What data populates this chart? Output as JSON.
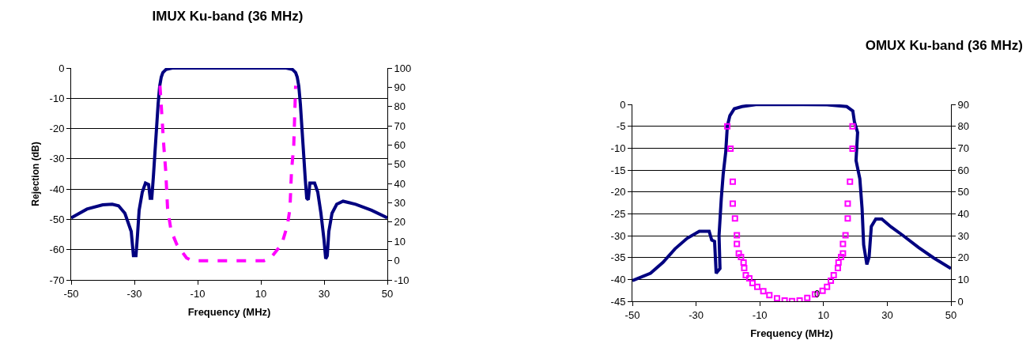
{
  "chart_data": [
    {
      "type": "line",
      "title": "IMUX Ku-band (36 MHz)",
      "xlabel": "Frequency (MHz)",
      "ylabel": "Rejection (dB)",
      "xlim": [
        -50,
        50
      ],
      "xticks": [
        -50,
        -30,
        -10,
        10,
        30,
        50
      ],
      "ylim": [
        -70,
        0
      ],
      "yticks": [
        -70,
        -60,
        -50,
        -40,
        -30,
        -20,
        -10,
        0
      ],
      "y2lim": [
        -10,
        100
      ],
      "y2ticks": [
        -10,
        0,
        10,
        20,
        30,
        40,
        50,
        60,
        70,
        80,
        90,
        100
      ],
      "grid": "y",
      "series": [
        {
          "color": "#000080",
          "marker": "none",
          "line_style": "solid",
          "x": [
            -50,
            -45,
            -40,
            -37,
            -35,
            -33,
            -31,
            -30.3,
            -29.5,
            -29,
            -28.5,
            -27.5,
            -26.5,
            -25.5,
            -25,
            -24.5,
            -24,
            -23.5,
            -23,
            -22.5,
            -22,
            -21.5,
            -21,
            -20,
            -18,
            0,
            18,
            20,
            21,
            21.5,
            22,
            22.5,
            23,
            23.5,
            24,
            24.5,
            25,
            25.5,
            27,
            28,
            29,
            30,
            30.5,
            31,
            31.5,
            32.5,
            34,
            36,
            40,
            45,
            50
          ],
          "values": [
            -49.5,
            -46.6,
            -45.2,
            -45,
            -45.5,
            -48,
            -54,
            -62,
            -62,
            -55,
            -47,
            -41,
            -38,
            -38.5,
            -43,
            -43,
            -36,
            -28,
            -20,
            -12,
            -6,
            -3,
            -1.5,
            -0.5,
            0,
            0,
            0,
            -0.5,
            -1.5,
            -3,
            -6,
            -12,
            -20,
            -28,
            -36,
            -43,
            -43.5,
            -38,
            -38,
            -41,
            -48,
            -57,
            -63,
            -62,
            -54,
            -48,
            -45,
            -44,
            -45,
            -47,
            -49.5
          ]
        },
        {
          "color": "#ff00ff",
          "axis": "y2",
          "marker": "none",
          "line_style": "dashed",
          "x": [
            -21.9,
            -20.7,
            -20.1,
            -19.5,
            -18.4,
            -16.6,
            -13.5,
            -11.8,
            0,
            11,
            13.1,
            16.6,
            18.4,
            19.2,
            19.7,
            20.4,
            21
          ],
          "values": [
            90.8,
            59.6,
            46.8,
            27,
            15.6,
            8.5,
            1.4,
            0,
            0,
            0,
            1.4,
            8.5,
            18.4,
            27,
            46.8,
            59.6,
            90.8
          ]
        }
      ]
    },
    {
      "type": "line",
      "title": "OMUX Ku-band (36 MHz)",
      "xlabel": "Frequency (MHz)",
      "xlim": [
        -50,
        50
      ],
      "xticks": [
        -50,
        -30,
        -10,
        10,
        30,
        50
      ],
      "ylim": [
        -45,
        0
      ],
      "yticks": [
        -45,
        -40,
        -35,
        -30,
        -25,
        -20,
        -15,
        -10,
        -5,
        0
      ],
      "y2lim": [
        0,
        90
      ],
      "y2ticks": [
        0,
        10,
        20,
        30,
        40,
        50,
        60,
        70,
        80,
        90
      ],
      "grid": "y",
      "annotations": [
        "0"
      ],
      "series": [
        {
          "color": "#000080",
          "marker": "none",
          "line_style": "solid",
          "x": [
            -50,
            -44.3,
            -40.4,
            -36.6,
            -32.8,
            -29,
            -25.9,
            -25.1,
            -24.2,
            -23.7,
            -22.5,
            -22.8,
            -22.1,
            -21.5,
            -20.7,
            -20.2,
            -19.4,
            -18,
            -15.6,
            -10.8,
            11.1,
            17.3,
            19.2,
            19.7,
            20.7,
            20.2,
            21.4,
            22.1,
            22.6,
            23.6,
            24.3,
            25,
            26.4,
            28.3,
            31.2,
            35,
            39.8,
            44.6,
            50
          ],
          "values": [
            -40.3,
            -38.6,
            -36.1,
            -33,
            -30.6,
            -29,
            -29,
            -31,
            -31.3,
            -38.6,
            -37.5,
            -30,
            -21.6,
            -16,
            -10.9,
            -5,
            -2.6,
            -1,
            -0.5,
            0,
            -0.1,
            -0.5,
            -1.5,
            -4,
            -6.4,
            -12.8,
            -17,
            -23.8,
            -32.1,
            -36.6,
            -34.9,
            -27.9,
            -26.2,
            -26.2,
            -28,
            -30,
            -32.7,
            -35.1,
            -37.5
          ]
        },
        {
          "type": "scatter",
          "color": "#ff00ff",
          "axis": "y2",
          "marker": "square",
          "x": [
            -20.2,
            -19.2,
            -18.5,
            -18.5,
            -17.8,
            -17.2,
            -17.2,
            -16.6,
            -15.9,
            -15.1,
            -14.9,
            -14.4,
            -13.3,
            -12.3,
            -10.8,
            -8.9,
            -7,
            -4.6,
            -2.2,
            0.1,
            2.5,
            4.9,
            7.3,
            9.7,
            11.1,
            12.3,
            13.2,
            14.5,
            14.7,
            15.5,
            16.1,
            16.1,
            16.9,
            17.6,
            17.6,
            18.3,
            19.1,
            19.1
          ],
          "values": [
            80,
            69.8,
            54.7,
            44.6,
            37.9,
            30.2,
            26.2,
            21.9,
            20.2,
            17.7,
            15.2,
            11.9,
            10.5,
            8.3,
            6.6,
            4.6,
            2.8,
            1.4,
            0.4,
            0.1,
            0.4,
            1.5,
            3.2,
            4.8,
            6.6,
            9.4,
            11.9,
            15.2,
            17.7,
            20.2,
            21.9,
            26.2,
            30.2,
            37.9,
            44.6,
            54.7,
            69.8,
            80
          ]
        }
      ]
    }
  ]
}
